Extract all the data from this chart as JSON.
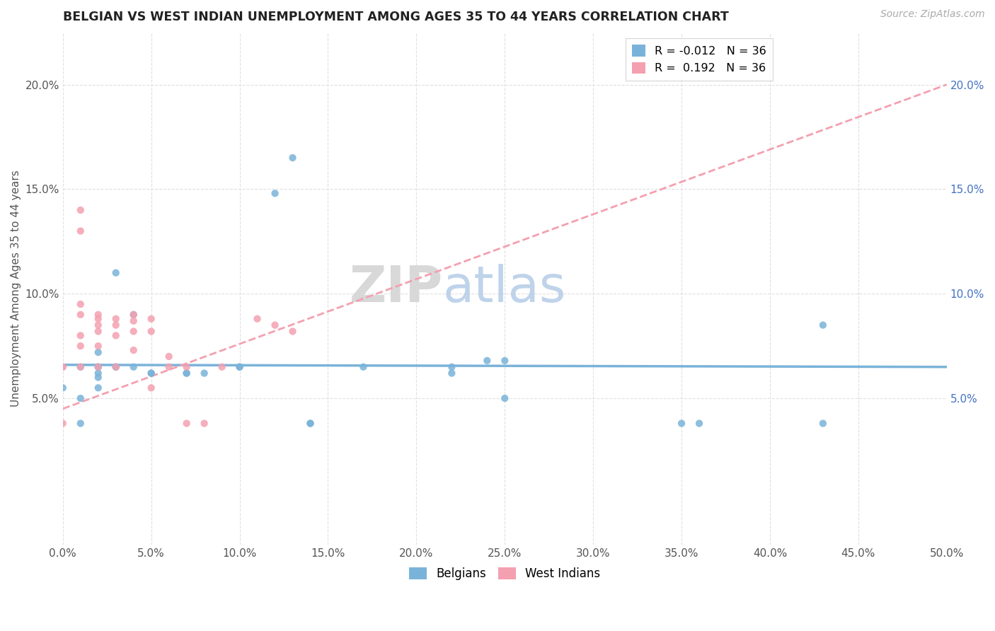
{
  "title": "BELGIAN VS WEST INDIAN UNEMPLOYMENT AMONG AGES 35 TO 44 YEARS CORRELATION CHART",
  "source_text": "Source: ZipAtlas.com",
  "ylabel": "Unemployment Among Ages 35 to 44 years",
  "xlim": [
    0.0,
    0.5
  ],
  "ylim": [
    -0.02,
    0.225
  ],
  "xticks": [
    0.0,
    0.05,
    0.1,
    0.15,
    0.2,
    0.25,
    0.3,
    0.35,
    0.4,
    0.45,
    0.5
  ],
  "xticklabels": [
    "0.0%",
    "5.0%",
    "10.0%",
    "15.0%",
    "20.0%",
    "25.0%",
    "30.0%",
    "35.0%",
    "40.0%",
    "45.0%",
    "50.0%"
  ],
  "yticks": [
    0.05,
    0.1,
    0.15,
    0.2
  ],
  "yticklabels": [
    "5.0%",
    "10.0%",
    "15.0%",
    "20.0%"
  ],
  "right_ytick_color": "#4472c4",
  "belgian_color": "#7ab3d9",
  "west_indian_color": "#f4a0b0",
  "belgians_x": [
    0.0,
    0.01,
    0.01,
    0.01,
    0.02,
    0.02,
    0.02,
    0.02,
    0.02,
    0.02,
    0.03,
    0.03,
    0.03,
    0.04,
    0.04,
    0.05,
    0.05,
    0.07,
    0.07,
    0.08,
    0.1,
    0.1,
    0.12,
    0.13,
    0.14,
    0.14,
    0.17,
    0.22,
    0.22,
    0.24,
    0.25,
    0.25,
    0.35,
    0.36,
    0.43,
    0.43
  ],
  "belgians_y": [
    0.055,
    0.065,
    0.05,
    0.038,
    0.072,
    0.065,
    0.065,
    0.062,
    0.06,
    0.055,
    0.065,
    0.065,
    0.11,
    0.09,
    0.065,
    0.062,
    0.062,
    0.062,
    0.062,
    0.062,
    0.065,
    0.065,
    0.148,
    0.165,
    0.038,
    0.038,
    0.065,
    0.062,
    0.065,
    0.068,
    0.05,
    0.068,
    0.038,
    0.038,
    0.085,
    0.038
  ],
  "west_indians_x": [
    0.0,
    0.0,
    0.0,
    0.01,
    0.01,
    0.01,
    0.01,
    0.01,
    0.01,
    0.01,
    0.02,
    0.02,
    0.02,
    0.02,
    0.02,
    0.02,
    0.03,
    0.03,
    0.03,
    0.03,
    0.04,
    0.04,
    0.04,
    0.04,
    0.05,
    0.05,
    0.05,
    0.06,
    0.06,
    0.07,
    0.07,
    0.08,
    0.09,
    0.11,
    0.12,
    0.13
  ],
  "west_indians_y": [
    0.065,
    0.065,
    0.038,
    0.14,
    0.13,
    0.095,
    0.09,
    0.08,
    0.075,
    0.065,
    0.09,
    0.088,
    0.085,
    0.082,
    0.075,
    0.065,
    0.088,
    0.085,
    0.08,
    0.065,
    0.09,
    0.087,
    0.082,
    0.073,
    0.088,
    0.082,
    0.055,
    0.07,
    0.065,
    0.065,
    0.038,
    0.038,
    0.065,
    0.088,
    0.085,
    0.082
  ],
  "legend_belgian_label": "R = -0.012   N = 36",
  "legend_wi_label": "R =  0.192   N = 36",
  "watermark_zip": "ZIP",
  "watermark_atlas": "atlas",
  "background_color": "#ffffff",
  "grid_color": "#e0e0e0",
  "wi_line_intercept": 0.045,
  "wi_line_slope": 0.31,
  "b_line_intercept": 0.066,
  "b_line_slope": -0.002
}
